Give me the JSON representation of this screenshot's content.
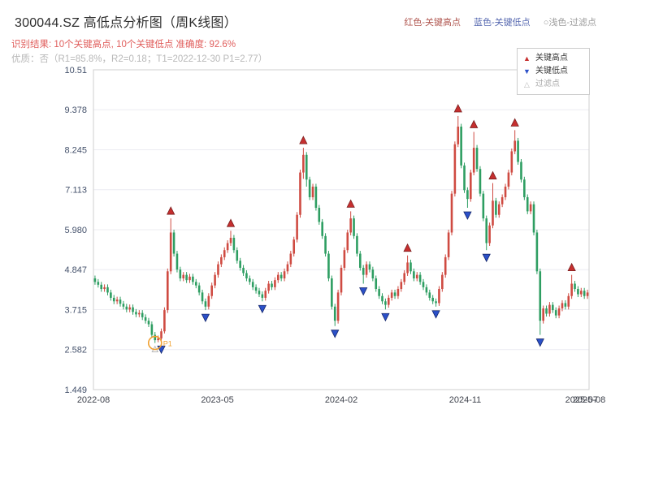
{
  "header": {
    "title": "300044.SZ 高低点分析图（周K线图）",
    "legend_inline": [
      {
        "label": "红色-关键高点",
        "color": "#b0564f"
      },
      {
        "label": "蓝色-关键低点",
        "color": "#5668b0"
      },
      {
        "label": "○浅色-过滤点",
        "color": "#9a9a9a"
      }
    ],
    "result_line": "识别结果: 10个关键高点, 10个关键低点  准确度: 92.6%",
    "result_color": "#e05e5c",
    "quality_line": "优质：否（R1=85.8%，R2=0.18；T1=2022-12-30 P1=2.77）",
    "quality_color": "#b8b8b8"
  },
  "chart_data": {
    "type": "candlestick",
    "instrument": "300044.SZ",
    "period": "周K线",
    "num_key_highs": 10,
    "num_key_lows": 10,
    "accuracy": "92.6%",
    "ylim": [
      1.449,
      10.51
    ],
    "y_ticks": [
      "1.449",
      "2.582",
      "3.715",
      "4.847",
      "5.980",
      "7.113",
      "8.245",
      "9.378",
      "10.51"
    ],
    "x_ticks": [
      {
        "label": "2022-08",
        "pos": 0
      },
      {
        "label": "2023-05",
        "pos": 0.25
      },
      {
        "label": "2024-02",
        "pos": 0.5
      },
      {
        "label": "2024-11",
        "pos": 0.75
      },
      {
        "label": "2025-07",
        "pos": 0.985
      },
      {
        "label": "2025-08",
        "pos": 1
      }
    ],
    "grid": "horizontal",
    "legend_position": "top-right",
    "up_color": "#cf4b42",
    "down_color": "#2e9e62",
    "key_high_color": "#c62f2f",
    "key_low_color": "#2b50c8",
    "axis_colors": {
      "y": "#44516b",
      "x": "#3f434d"
    },
    "candles": [
      [
        4.6,
        4.68,
        4.42,
        4.5
      ],
      [
        4.5,
        4.58,
        4.34,
        4.42
      ],
      [
        4.42,
        4.5,
        4.22,
        4.3
      ],
      [
        4.3,
        4.43,
        4.22,
        4.35
      ],
      [
        4.35,
        4.43,
        4.12,
        4.2
      ],
      [
        4.2,
        4.28,
        3.97,
        4.05
      ],
      [
        4.05,
        4.13,
        3.87,
        3.95
      ],
      [
        3.95,
        4.08,
        3.87,
        4.0
      ],
      [
        4.0,
        4.08,
        3.8,
        3.88
      ],
      [
        3.88,
        3.96,
        3.72,
        3.8
      ],
      [
        3.8,
        3.88,
        3.64,
        3.72
      ],
      [
        3.72,
        3.86,
        3.64,
        3.78
      ],
      [
        3.78,
        3.86,
        3.57,
        3.65
      ],
      [
        3.65,
        3.73,
        3.5,
        3.58
      ],
      [
        3.58,
        3.7,
        3.5,
        3.62
      ],
      [
        3.62,
        3.7,
        3.42,
        3.5
      ],
      [
        3.5,
        3.58,
        3.32,
        3.4
      ],
      [
        3.4,
        3.48,
        3.22,
        3.3
      ],
      [
        3.3,
        3.38,
        2.92,
        3.0
      ],
      [
        3.0,
        3.08,
        2.77,
        2.85
      ],
      [
        2.85,
        2.98,
        2.79,
        2.9
      ],
      [
        2.9,
        3.18,
        2.8,
        3.1
      ],
      [
        3.1,
        3.78,
        3.04,
        3.7
      ],
      [
        3.7,
        4.88,
        3.62,
        4.8
      ],
      [
        4.8,
        6.3,
        4.72,
        5.9
      ],
      [
        5.9,
        5.98,
        5.22,
        5.3
      ],
      [
        5.3,
        5.38,
        4.77,
        4.85
      ],
      [
        4.85,
        4.93,
        4.52,
        4.6
      ],
      [
        4.6,
        4.78,
        4.52,
        4.7
      ],
      [
        4.7,
        4.78,
        4.47,
        4.55
      ],
      [
        4.55,
        4.73,
        4.47,
        4.65
      ],
      [
        4.65,
        4.73,
        4.42,
        4.5
      ],
      [
        4.5,
        4.58,
        4.32,
        4.4
      ],
      [
        4.4,
        4.48,
        4.12,
        4.2
      ],
      [
        4.2,
        4.28,
        3.87,
        3.95
      ],
      [
        3.95,
        4.03,
        3.7,
        3.8
      ],
      [
        3.8,
        4.18,
        3.72,
        4.1
      ],
      [
        4.1,
        4.48,
        4.02,
        4.4
      ],
      [
        4.4,
        4.78,
        4.32,
        4.7
      ],
      [
        4.7,
        5.08,
        4.62,
        5.0
      ],
      [
        5.0,
        5.28,
        4.92,
        5.2
      ],
      [
        5.2,
        5.48,
        5.12,
        5.4
      ],
      [
        5.4,
        5.68,
        5.32,
        5.6
      ],
      [
        5.6,
        5.95,
        5.52,
        5.75
      ],
      [
        5.75,
        5.83,
        5.32,
        5.4
      ],
      [
        5.4,
        5.48,
        5.02,
        5.1
      ],
      [
        5.1,
        5.18,
        4.82,
        4.9
      ],
      [
        4.9,
        4.98,
        4.67,
        4.75
      ],
      [
        4.75,
        4.83,
        4.52,
        4.6
      ],
      [
        4.6,
        4.68,
        4.42,
        4.5
      ],
      [
        4.5,
        4.58,
        4.27,
        4.35
      ],
      [
        4.35,
        4.43,
        4.17,
        4.25
      ],
      [
        4.25,
        4.33,
        4.07,
        4.15
      ],
      [
        4.15,
        4.23,
        3.95,
        4.05
      ],
      [
        4.05,
        4.33,
        3.97,
        4.25
      ],
      [
        4.25,
        4.53,
        4.17,
        4.45
      ],
      [
        4.45,
        4.53,
        4.27,
        4.35
      ],
      [
        4.35,
        4.63,
        4.27,
        4.55
      ],
      [
        4.55,
        4.78,
        4.47,
        4.7
      ],
      [
        4.7,
        4.78,
        4.52,
        4.6
      ],
      [
        4.6,
        4.88,
        4.52,
        4.8
      ],
      [
        4.8,
        5.08,
        4.72,
        5.0
      ],
      [
        5.0,
        5.38,
        4.92,
        5.3
      ],
      [
        5.3,
        5.78,
        5.22,
        5.7
      ],
      [
        5.7,
        6.48,
        5.62,
        6.4
      ],
      [
        6.4,
        7.68,
        6.32,
        7.6
      ],
      [
        7.6,
        8.3,
        7.42,
        8.1
      ],
      [
        8.1,
        8.18,
        7.2,
        7.4
      ],
      [
        7.4,
        7.48,
        6.82,
        6.9
      ],
      [
        6.9,
        7.28,
        6.82,
        7.2
      ],
      [
        7.2,
        7.28,
        6.52,
        6.6
      ],
      [
        6.6,
        6.68,
        6.12,
        6.2
      ],
      [
        6.2,
        6.28,
        5.72,
        5.8
      ],
      [
        5.8,
        5.88,
        5.22,
        5.3
      ],
      [
        5.3,
        5.38,
        4.52,
        4.6
      ],
      [
        4.6,
        4.68,
        3.72,
        3.8
      ],
      [
        3.8,
        3.88,
        3.25,
        3.4
      ],
      [
        3.4,
        4.28,
        3.32,
        4.2
      ],
      [
        4.2,
        4.98,
        4.12,
        4.9
      ],
      [
        4.9,
        5.48,
        4.82,
        5.4
      ],
      [
        5.4,
        5.98,
        5.32,
        5.9
      ],
      [
        5.9,
        6.5,
        5.82,
        6.3
      ],
      [
        6.3,
        6.38,
        5.72,
        5.8
      ],
      [
        5.8,
        5.88,
        5.22,
        5.3
      ],
      [
        5.3,
        5.38,
        4.82,
        4.9
      ],
      [
        4.9,
        4.98,
        4.45,
        4.7
      ],
      [
        4.7,
        5.08,
        4.62,
        5.0
      ],
      [
        5.0,
        5.08,
        4.77,
        4.85
      ],
      [
        4.85,
        4.93,
        4.52,
        4.6
      ],
      [
        4.6,
        4.68,
        4.22,
        4.3
      ],
      [
        4.3,
        4.38,
        4.02,
        4.1
      ],
      [
        4.1,
        4.18,
        3.87,
        3.95
      ],
      [
        3.95,
        4.03,
        3.72,
        3.85
      ],
      [
        3.85,
        4.13,
        3.77,
        4.05
      ],
      [
        4.05,
        4.28,
        3.97,
        4.2
      ],
      [
        4.2,
        4.28,
        4.02,
        4.1
      ],
      [
        4.1,
        4.38,
        4.02,
        4.3
      ],
      [
        4.3,
        4.58,
        4.22,
        4.5
      ],
      [
        4.5,
        4.83,
        4.42,
        4.75
      ],
      [
        4.75,
        5.25,
        4.67,
        5.05
      ],
      [
        5.05,
        5.13,
        4.72,
        4.8
      ],
      [
        4.8,
        4.88,
        4.52,
        4.6
      ],
      [
        4.6,
        4.78,
        4.52,
        4.7
      ],
      [
        4.7,
        4.78,
        4.42,
        4.5
      ],
      [
        4.5,
        4.58,
        4.27,
        4.35
      ],
      [
        4.35,
        4.43,
        4.12,
        4.2
      ],
      [
        4.2,
        4.28,
        3.97,
        4.05
      ],
      [
        4.05,
        4.13,
        3.87,
        3.95
      ],
      [
        3.95,
        4.03,
        3.8,
        3.9
      ],
      [
        3.9,
        4.38,
        3.82,
        4.3
      ],
      [
        4.3,
        4.78,
        4.22,
        4.7
      ],
      [
        4.7,
        5.28,
        4.62,
        5.2
      ],
      [
        5.2,
        5.98,
        5.12,
        5.9
      ],
      [
        5.9,
        7.08,
        5.82,
        7.0
      ],
      [
        7.0,
        8.48,
        6.92,
        8.4
      ],
      [
        8.4,
        9.2,
        8.32,
        8.9
      ],
      [
        8.9,
        8.98,
        7.72,
        7.8
      ],
      [
        7.8,
        7.88,
        7.02,
        7.1
      ],
      [
        7.1,
        7.18,
        6.6,
        6.85
      ],
      [
        6.85,
        7.68,
        6.77,
        7.6
      ],
      [
        7.6,
        8.75,
        7.52,
        8.3
      ],
      [
        8.3,
        8.38,
        7.62,
        7.7
      ],
      [
        7.7,
        7.78,
        6.92,
        7.0
      ],
      [
        7.0,
        7.08,
        6.22,
        6.3
      ],
      [
        6.3,
        6.38,
        5.4,
        5.6
      ],
      [
        5.6,
        6.18,
        5.52,
        6.1
      ],
      [
        6.1,
        7.3,
        6.02,
        6.8
      ],
      [
        6.8,
        6.88,
        6.32,
        6.4
      ],
      [
        6.4,
        6.78,
        6.32,
        6.7
      ],
      [
        6.7,
        6.98,
        6.62,
        6.9
      ],
      [
        6.9,
        7.28,
        6.82,
        7.2
      ],
      [
        7.2,
        7.68,
        7.12,
        7.6
      ],
      [
        7.6,
        8.28,
        7.52,
        8.2
      ],
      [
        8.2,
        8.8,
        8.12,
        8.5
      ],
      [
        8.5,
        8.58,
        7.82,
        7.9
      ],
      [
        7.9,
        7.98,
        7.32,
        7.4
      ],
      [
        7.4,
        7.48,
        6.82,
        6.9
      ],
      [
        6.9,
        6.98,
        6.42,
        6.5
      ],
      [
        6.5,
        6.78,
        6.42,
        6.7
      ],
      [
        6.7,
        6.78,
        5.82,
        5.9
      ],
      [
        5.9,
        5.98,
        4.72,
        4.8
      ],
      [
        4.8,
        4.88,
        3.0,
        3.4
      ],
      [
        3.4,
        3.83,
        3.32,
        3.75
      ],
      [
        3.75,
        3.83,
        3.52,
        3.6
      ],
      [
        3.6,
        3.93,
        3.52,
        3.85
      ],
      [
        3.85,
        3.93,
        3.62,
        3.7
      ],
      [
        3.7,
        3.78,
        3.47,
        3.55
      ],
      [
        3.55,
        3.83,
        3.47,
        3.75
      ],
      [
        3.75,
        3.98,
        3.67,
        3.9
      ],
      [
        3.9,
        3.98,
        3.72,
        3.8
      ],
      [
        3.8,
        4.18,
        3.72,
        4.1
      ],
      [
        4.1,
        4.7,
        4.02,
        4.45
      ],
      [
        4.45,
        4.53,
        4.22,
        4.3
      ],
      [
        4.3,
        4.38,
        4.07,
        4.15
      ],
      [
        4.15,
        4.33,
        4.07,
        4.25
      ],
      [
        4.25,
        4.33,
        4.02,
        4.1
      ],
      [
        4.1,
        4.28,
        4.02,
        4.2
      ]
    ],
    "key_highs": [
      {
        "i": 24,
        "v": 6.3
      },
      {
        "i": 43,
        "v": 5.95
      },
      {
        "i": 66,
        "v": 8.3
      },
      {
        "i": 81,
        "v": 6.5
      },
      {
        "i": 99,
        "v": 5.25
      },
      {
        "i": 115,
        "v": 9.2
      },
      {
        "i": 120,
        "v": 8.75
      },
      {
        "i": 126,
        "v": 7.3
      },
      {
        "i": 133,
        "v": 8.8
      },
      {
        "i": 151,
        "v": 4.7
      }
    ],
    "key_lows": [
      {
        "i": 21,
        "v": 2.8
      },
      {
        "i": 35,
        "v": 3.7
      },
      {
        "i": 53,
        "v": 3.95
      },
      {
        "i": 76,
        "v": 3.25
      },
      {
        "i": 85,
        "v": 4.45
      },
      {
        "i": 92,
        "v": 3.72
      },
      {
        "i": 108,
        "v": 3.8
      },
      {
        "i": 118,
        "v": 6.6
      },
      {
        "i": 124,
        "v": 5.4
      },
      {
        "i": 141,
        "v": 3.0
      }
    ],
    "filtered_points": [
      {
        "i": 19,
        "v": 2.77
      }
    ],
    "annotation": {
      "i": 19,
      "v": 2.77,
      "label": "P1",
      "color": "#f0a030"
    },
    "legend_box": [
      {
        "label": "关键高点",
        "glyph": "▲",
        "color": "#c62f2f"
      },
      {
        "label": "关键低点",
        "glyph": "▼",
        "color": "#2b50c8"
      },
      {
        "label": "过滤点",
        "glyph": "△",
        "color": "#b8b8b8"
      }
    ]
  }
}
